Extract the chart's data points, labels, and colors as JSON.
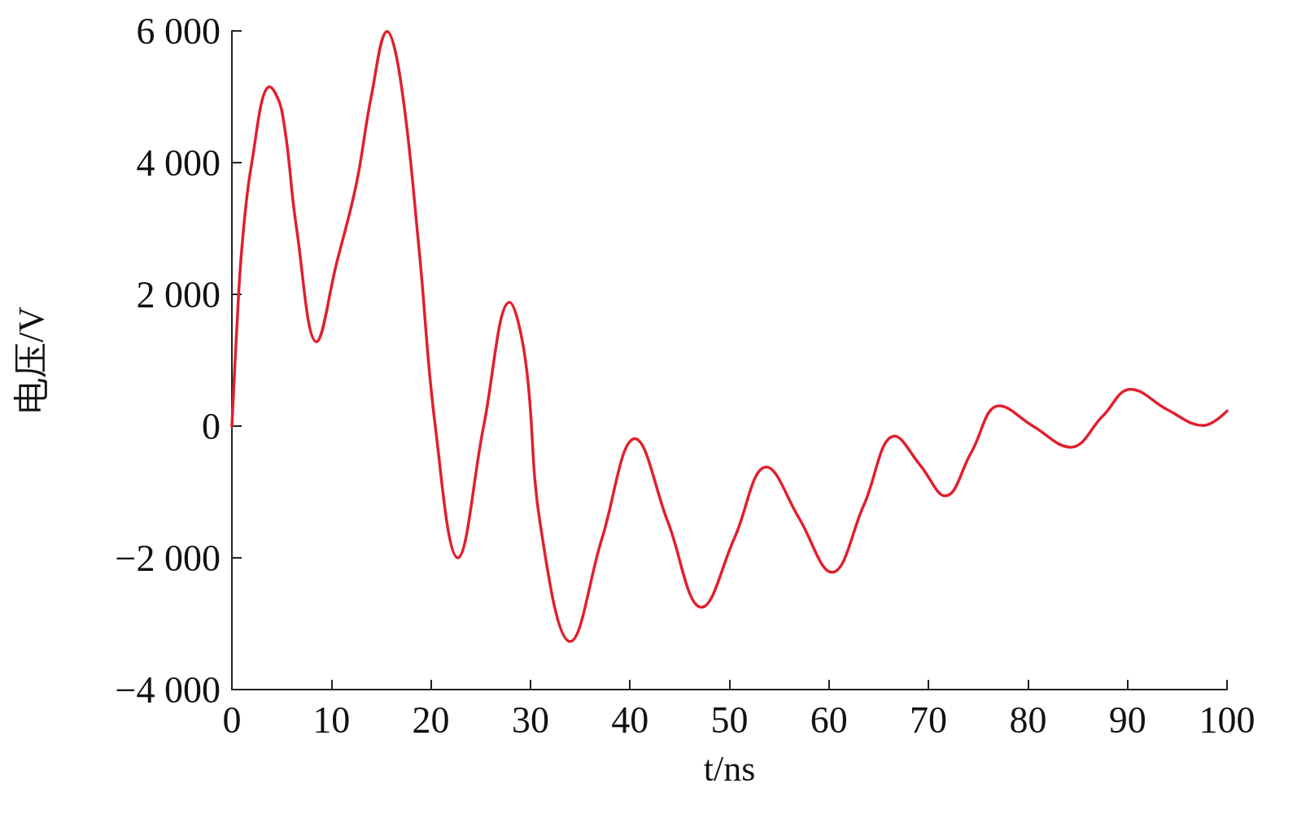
{
  "chart_data": {
    "type": "line",
    "xlabel": "t/ns",
    "ylabel": "电压/V",
    "x": [
      0,
      0.5,
      1,
      2,
      3.8,
      5,
      6.5,
      8.5,
      10.5,
      12.5,
      14,
      15.6,
      17,
      18.8,
      20.4,
      22.7,
      25.3,
      27.9,
      29.5,
      31,
      34,
      37.2,
      40.5,
      43.8,
      47.2,
      50.5,
      53.7,
      57,
      60.3,
      63.5,
      66.6,
      69.2,
      71.7,
      74.3,
      77.1,
      80.5,
      84.3,
      87.5,
      90.3,
      94,
      97.6,
      100
    ],
    "series": [
      {
        "color": "#e0202e",
        "values": [
          0,
          1500,
          2700,
          4000,
          5150,
          4800,
          3000,
          1280,
          2460,
          3670,
          5000,
          5990,
          5200,
          2700,
          50,
          -2000,
          0,
          1880,
          1000,
          -1500,
          -3270,
          -1700,
          -190,
          -1450,
          -2750,
          -1700,
          -620,
          -1400,
          -2220,
          -1200,
          -150,
          -600,
          -1060,
          -400,
          310,
          0,
          -320,
          150,
          560,
          250,
          10,
          230
        ]
      }
    ],
    "xlim": [
      0,
      100
    ],
    "xticks": [
      0,
      10,
      20,
      30,
      40,
      50,
      60,
      70,
      80,
      90,
      100
    ],
    "ylim": [
      -4000,
      6000
    ],
    "yticks": [
      {
        "value": -4000,
        "label": "−4 000"
      },
      {
        "value": -2000,
        "label": "−2 000"
      },
      0,
      {
        "value": 2000,
        "label": "2 000"
      },
      {
        "value": 4000,
        "label": "4 000"
      },
      {
        "value": 6000,
        "label": "6 000"
      }
    ],
    "grid": false,
    "marker": "none",
    "line_style": "solid"
  }
}
